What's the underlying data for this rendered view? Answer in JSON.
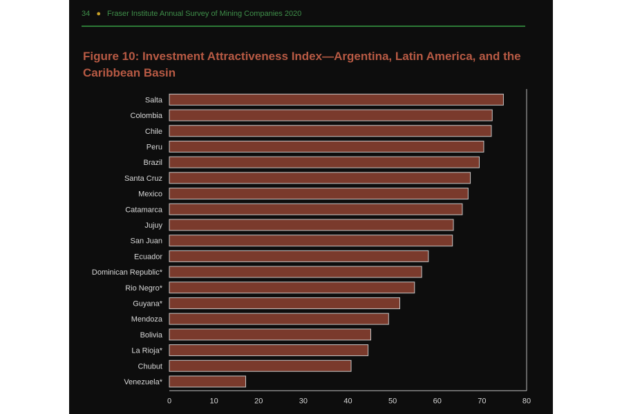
{
  "header": {
    "page_number": "34",
    "running_title": "Fraser Institute Annual Survey of Mining Companies 2020"
  },
  "colors": {
    "bar_fill": "#7a3a2c",
    "bar_stroke": "#c8c8c8",
    "title": "#b85a44",
    "header_rule": "#2d7a36",
    "background": "#0d0d0d"
  },
  "chart_data": {
    "type": "bar",
    "orientation": "horizontal",
    "title": "Figure 10: Investment Attractiveness Index—Argentina, Latin America, and the Caribbean Basin",
    "xlabel": "",
    "ylabel": "",
    "xlim": [
      0,
      80
    ],
    "x_ticks": [
      0,
      10,
      20,
      30,
      40,
      50,
      60,
      70,
      80
    ],
    "grid": "vertical lines at 80",
    "legend": "none",
    "categories": [
      "Salta",
      "Colombia",
      "Chile",
      "Peru",
      "Brazil",
      "Santa Cruz",
      "Mexico",
      "Catamarca",
      "Jujuy",
      "San Juan",
      "Ecuador",
      "Dominican Republic*",
      "Rio Negro*",
      "Guyana*",
      "Mendoza",
      "Bolivia",
      "La Rioja*",
      "Chubut",
      "Venezuela*"
    ],
    "values": [
      74.8,
      72.3,
      72.1,
      70.4,
      69.4,
      67.4,
      66.9,
      65.6,
      63.6,
      63.4,
      58.0,
      56.5,
      54.9,
      51.6,
      49.1,
      45.1,
      44.5,
      40.7,
      17.1
    ]
  }
}
